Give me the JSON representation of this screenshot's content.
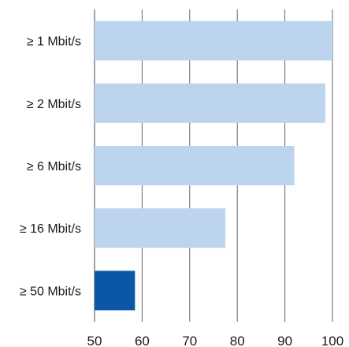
{
  "chart_data": {
    "type": "bar",
    "orientation": "horizontal",
    "title": "",
    "xlabel": "",
    "ylabel": "",
    "categories": [
      "≥ 1 Mbit/s",
      "≥ 2 Mbit/s",
      "≥ 6 Mbit/s",
      "≥ 16 Mbit/s",
      "≥ 50 Mbit/s"
    ],
    "values": [
      100,
      98.5,
      92,
      77.5,
      58.5
    ],
    "xlim": [
      50,
      100
    ],
    "xticks": [
      50,
      60,
      70,
      80,
      90,
      100
    ],
    "xtick_labels": [
      "50",
      "60",
      "70",
      "80",
      "90",
      "100"
    ],
    "grid": "vertical",
    "colors": {
      "default_bar": "#bcd4ee",
      "highlight_bar": "#0b56a8",
      "grid": "#666666"
    },
    "highlight_index": 4
  }
}
